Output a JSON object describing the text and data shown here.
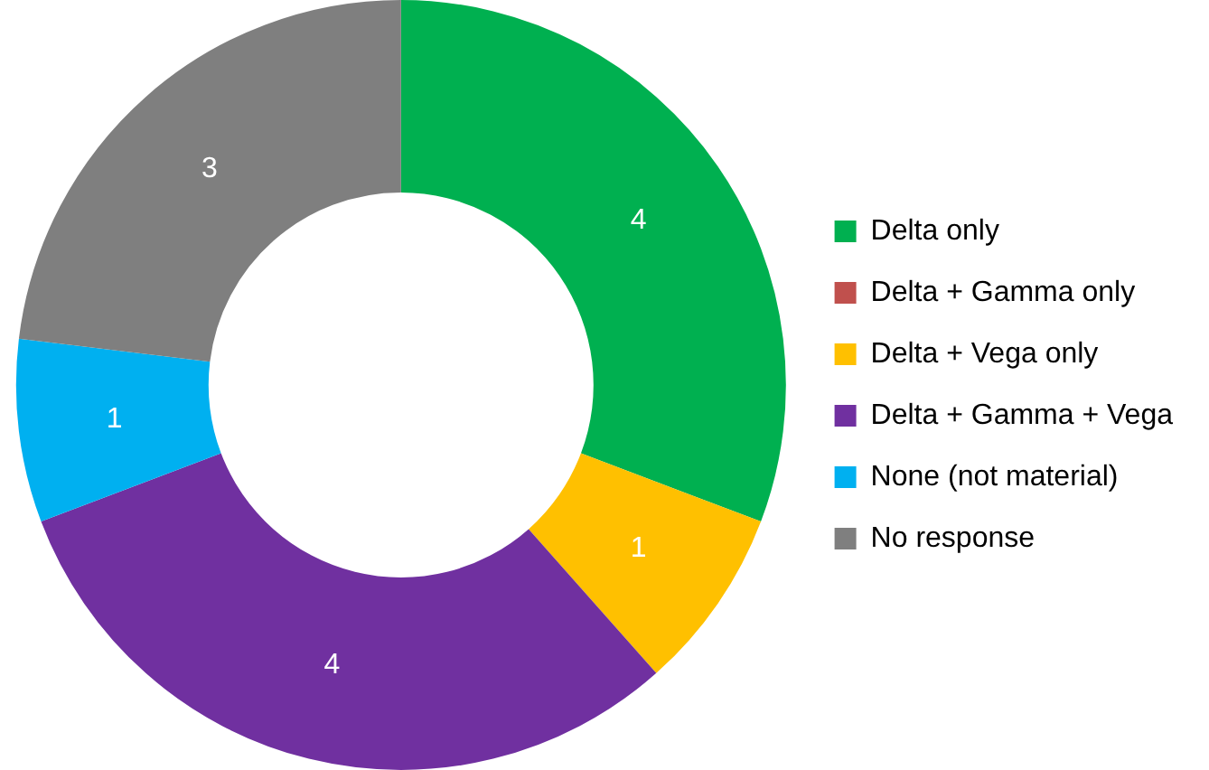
{
  "chart_data": {
    "type": "donut",
    "categories": [
      "Delta only",
      "Delta + Gamma only",
      "Delta + Vega only",
      "Delta + Gamma + Vega",
      "None (not material)",
      "No response"
    ],
    "values": [
      4,
      0,
      1,
      4,
      1,
      3
    ],
    "colors": [
      "#00b050",
      "#c0504d",
      "#ffc000",
      "#7030a0",
      "#00b0f0",
      "#7f7f7f"
    ],
    "value_labels": [
      "4",
      null,
      "1",
      "4",
      "1",
      "3"
    ],
    "legend": "right"
  }
}
